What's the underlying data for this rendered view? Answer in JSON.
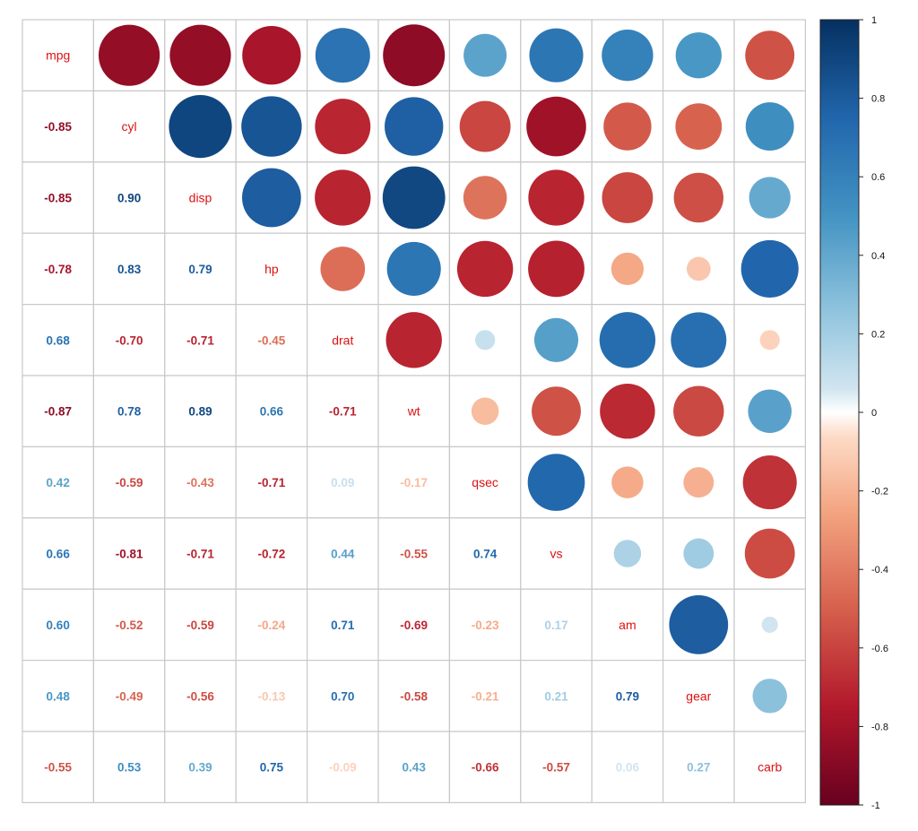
{
  "chart_data": {
    "type": "heatmap",
    "variables": [
      "mpg",
      "cyl",
      "disp",
      "hp",
      "drat",
      "wt",
      "qsec",
      "vs",
      "am",
      "gear",
      "carb"
    ],
    "matrix": [
      [
        1.0,
        -0.85,
        -0.85,
        -0.78,
        0.68,
        -0.87,
        0.42,
        0.66,
        0.6,
        0.48,
        -0.55
      ],
      [
        -0.85,
        1.0,
        0.9,
        0.83,
        -0.7,
        0.78,
        -0.59,
        -0.81,
        -0.52,
        -0.49,
        0.53
      ],
      [
        -0.85,
        0.9,
        1.0,
        0.79,
        -0.71,
        0.89,
        -0.43,
        -0.71,
        -0.59,
        -0.56,
        0.39
      ],
      [
        -0.78,
        0.83,
        0.79,
        1.0,
        -0.45,
        0.66,
        -0.71,
        -0.72,
        -0.24,
        -0.13,
        0.75
      ],
      [
        0.68,
        -0.7,
        -0.71,
        -0.45,
        1.0,
        -0.71,
        0.09,
        0.44,
        0.71,
        0.7,
        -0.09
      ],
      [
        -0.87,
        0.78,
        0.89,
        0.66,
        -0.71,
        1.0,
        -0.17,
        -0.55,
        -0.69,
        -0.58,
        0.43
      ],
      [
        0.42,
        -0.59,
        -0.43,
        -0.71,
        0.09,
        -0.17,
        1.0,
        0.74,
        -0.23,
        -0.21,
        -0.66
      ],
      [
        0.66,
        -0.81,
        -0.71,
        -0.72,
        0.44,
        -0.55,
        0.74,
        1.0,
        0.17,
        0.21,
        -0.57
      ],
      [
        0.6,
        -0.52,
        -0.59,
        -0.24,
        0.71,
        -0.69,
        -0.23,
        0.17,
        1.0,
        0.79,
        0.06
      ],
      [
        0.48,
        -0.49,
        -0.56,
        -0.13,
        0.7,
        -0.58,
        -0.21,
        0.21,
        0.79,
        1.0,
        0.27
      ],
      [
        -0.55,
        0.53,
        0.39,
        0.75,
        -0.09,
        0.43,
        -0.66,
        -0.57,
        0.06,
        0.27,
        1.0
      ]
    ],
    "lower_labels": [
      [
        "",
        "",
        "",
        "",
        "",
        "",
        "",
        "",
        "",
        "",
        ""
      ],
      [
        "-0.85",
        "",
        "",
        "",
        "",
        "",
        "",
        "",
        "",
        "",
        ""
      ],
      [
        "-0.85",
        "0.90",
        "",
        "",
        "",
        "",
        "",
        "",
        "",
        "",
        ""
      ],
      [
        "-0.78",
        "0.83",
        "0.79",
        "",
        "",
        "",
        "",
        "",
        "",
        "",
        ""
      ],
      [
        "0.68",
        "-0.70",
        "-0.71",
        "-0.45",
        "",
        "",
        "",
        "",
        "",
        "",
        ""
      ],
      [
        "-0.87",
        "0.78",
        "0.89",
        "0.66",
        "-0.71",
        "",
        "",
        "",
        "",
        "",
        ""
      ],
      [
        "0.42",
        "-0.59",
        "-0.43",
        "-0.71",
        "0.09",
        "-0.17",
        "",
        "",
        "",
        "",
        ""
      ],
      [
        "0.66",
        "-0.81",
        "-0.71",
        "-0.72",
        "0.44",
        "-0.55",
        "0.74",
        "",
        "",
        "",
        ""
      ],
      [
        "0.60",
        "-0.52",
        "-0.59",
        "-0.24",
        "0.71",
        "-0.69",
        "-0.23",
        "0.17",
        "",
        "",
        ""
      ],
      [
        "0.48",
        "-0.49",
        "-0.56",
        "-0.13",
        "0.70",
        "-0.58",
        "-0.21",
        "0.21",
        "0.79",
        "",
        ""
      ],
      [
        "-0.55",
        "0.53",
        "0.39",
        "0.75",
        "-0.09",
        "0.43",
        "-0.66",
        "-0.57",
        "0.06",
        "0.27",
        ""
      ]
    ],
    "upper_display": "circle",
    "lower_display": "number",
    "diagonal_display": "variable-name",
    "diagonal_label_color": "#dd1111",
    "color_scale": {
      "min": -1,
      "max": 1,
      "ticks": [
        "-1",
        "-0.8",
        "-0.6",
        "-0.4",
        "-0.2",
        "0",
        "0.2",
        "0.4",
        "0.6",
        "0.8",
        "1"
      ],
      "stops": [
        {
          "value": -1.0,
          "color": "#67001f"
        },
        {
          "value": -0.75,
          "color": "#b2182b"
        },
        {
          "value": -0.5,
          "color": "#d6604d"
        },
        {
          "value": -0.25,
          "color": "#f4a582"
        },
        {
          "value": -0.06,
          "color": "#fddbc7"
        },
        {
          "value": 0.0,
          "color": "#ffffff"
        },
        {
          "value": 0.06,
          "color": "#d1e5f0"
        },
        {
          "value": 0.25,
          "color": "#92c5de"
        },
        {
          "value": 0.5,
          "color": "#4393c3"
        },
        {
          "value": 0.75,
          "color": "#2166ac"
        },
        {
          "value": 1.0,
          "color": "#053061"
        }
      ],
      "legend_placement": "right"
    },
    "grid": true
  }
}
